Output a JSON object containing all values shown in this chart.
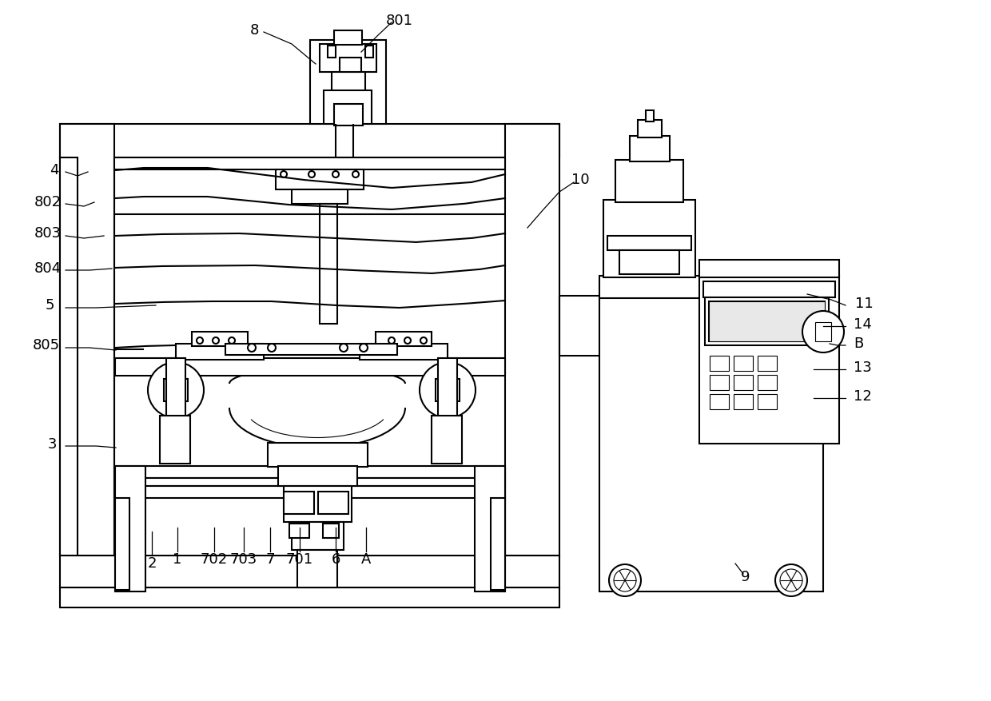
{
  "bg_color": "#ffffff",
  "line_color": "#000000",
  "lw": 1.5,
  "lw_thin": 0.8,
  "figsize": [
    12.4,
    8.77
  ],
  "dpi": 100,
  "label_fs": 13
}
